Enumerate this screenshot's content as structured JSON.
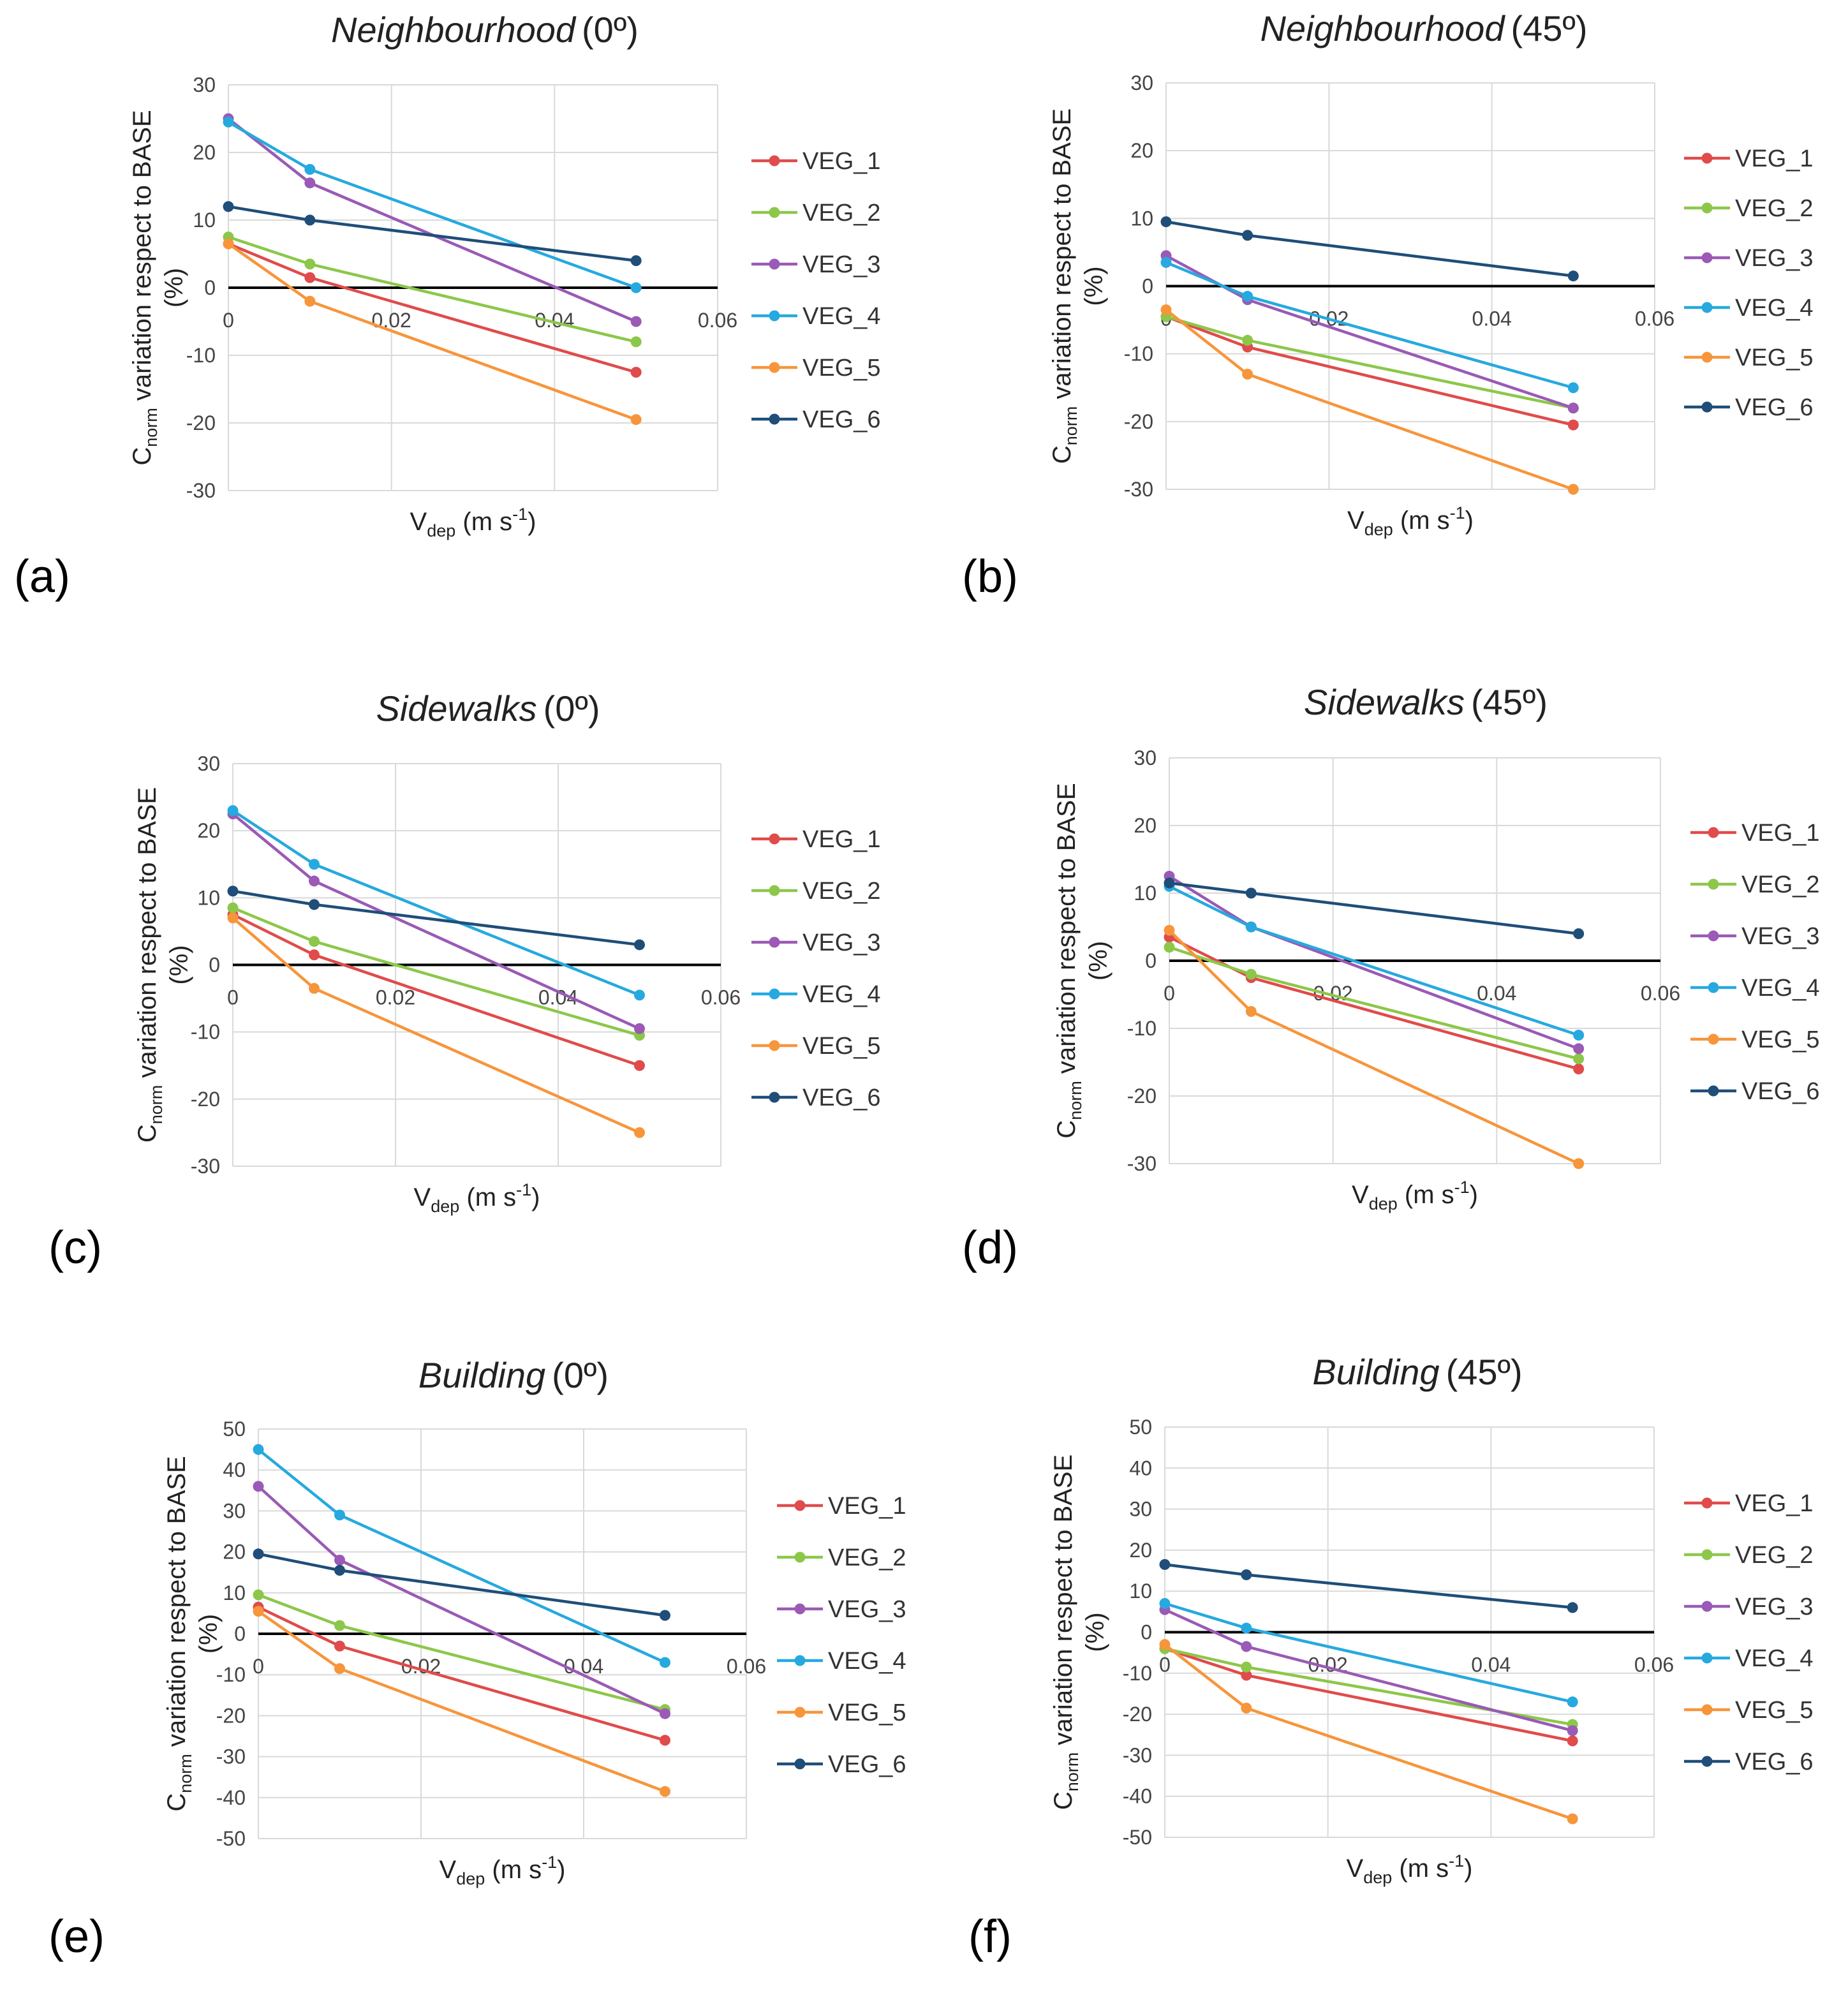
{
  "series_colors": {
    "VEG_1": "#e04b4b",
    "VEG_2": "#8cc74a",
    "VEG_3": "#9a5ab5",
    "VEG_4": "#26a9df",
    "VEG_5": "#f7953b",
    "VEG_6": "#1f4e79"
  },
  "chart_data": [
    {
      "panel_label": "(a)",
      "type": "line",
      "title_main": "Neighbourhood",
      "title_angle": "(0º)",
      "ylabel": {
        "c": "C",
        "sub": "norm",
        "rest": " variation respect to BASE",
        "line2": "(%)"
      },
      "xlabel": {
        "v": "V",
        "sub": "dep",
        "units": " (m s",
        "sup": "-1",
        "close": ")"
      },
      "ylim": [
        -30,
        30
      ],
      "yticks": [
        30,
        20,
        10,
        0,
        -10,
        -20,
        -30
      ],
      "xlim": [
        0,
        0.06
      ],
      "xticks": [
        "0",
        "0.02",
        "0.04",
        "0.06"
      ],
      "x": [
        0,
        0.01,
        0.05
      ],
      "series": [
        {
          "name": "VEG_1",
          "values": [
            6.5,
            1.5,
            -12.5
          ]
        },
        {
          "name": "VEG_2",
          "values": [
            7.5,
            3.5,
            -8
          ]
        },
        {
          "name": "VEG_3",
          "values": [
            25,
            15.5,
            -5
          ]
        },
        {
          "name": "VEG_4",
          "values": [
            24.5,
            17.5,
            0
          ]
        },
        {
          "name": "VEG_5",
          "values": [
            6.5,
            -2,
            -19.5
          ]
        },
        {
          "name": "VEG_6",
          "values": [
            12,
            10,
            4
          ]
        }
      ]
    },
    {
      "panel_label": "(b)",
      "type": "line",
      "title_main": "Neighbourhood",
      "title_angle": "(45º)",
      "ylabel": {
        "c": "C",
        "sub": "norm",
        "rest": " variation respect to BASE",
        "line2": "(%)"
      },
      "xlabel": {
        "v": "V",
        "sub": "dep",
        "units": " (m s",
        "sup": "-1",
        "close": ")"
      },
      "ylim": [
        -30,
        30
      ],
      "yticks": [
        30,
        20,
        10,
        0,
        -10,
        -20,
        -30
      ],
      "xlim": [
        0,
        0.06
      ],
      "xticks": [
        "0",
        "0.02",
        "0.04",
        "0.06"
      ],
      "x": [
        0,
        0.01,
        0.05
      ],
      "series": [
        {
          "name": "VEG_1",
          "values": [
            -4.5,
            -9,
            -20.5
          ]
        },
        {
          "name": "VEG_2",
          "values": [
            -4.5,
            -8,
            -18
          ]
        },
        {
          "name": "VEG_3",
          "values": [
            4.5,
            -2,
            -18
          ]
        },
        {
          "name": "VEG_4",
          "values": [
            3.5,
            -1.5,
            -15
          ]
        },
        {
          "name": "VEG_5",
          "values": [
            -3.5,
            -13,
            -30
          ]
        },
        {
          "name": "VEG_6",
          "values": [
            9.5,
            7.5,
            1.5
          ]
        }
      ]
    },
    {
      "panel_label": "(c)",
      "type": "line",
      "title_main": "Sidewalks",
      "title_angle": "(0º)",
      "ylabel": {
        "c": "C",
        "sub": "norm",
        "rest": " variation respect to BASE",
        "line2": "(%)"
      },
      "xlabel": {
        "v": "V",
        "sub": "dep",
        "units": " (m s",
        "sup": "-1",
        "close": ")"
      },
      "ylim": [
        -30,
        30
      ],
      "yticks": [
        30,
        20,
        10,
        0,
        -10,
        -20,
        -30
      ],
      "xlim": [
        0,
        0.06
      ],
      "xticks": [
        "0",
        "0.02",
        "0.04",
        "0.06"
      ],
      "x": [
        0,
        0.01,
        0.05
      ],
      "series": [
        {
          "name": "VEG_1",
          "values": [
            7.5,
            1.5,
            -15
          ]
        },
        {
          "name": "VEG_2",
          "values": [
            8.5,
            3.5,
            -10.5
          ]
        },
        {
          "name": "VEG_3",
          "values": [
            22.5,
            12.5,
            -9.5
          ]
        },
        {
          "name": "VEG_4",
          "values": [
            23,
            15,
            -4.5
          ]
        },
        {
          "name": "VEG_5",
          "values": [
            7,
            -3.5,
            -25
          ]
        },
        {
          "name": "VEG_6",
          "values": [
            11,
            9,
            3
          ]
        }
      ]
    },
    {
      "panel_label": "(d)",
      "type": "line",
      "title_main": "Sidewalks",
      "title_angle": "(45º)",
      "ylabel": {
        "c": "C",
        "sub": "norm",
        "rest": " variation respect to BASE",
        "line2": "(%)"
      },
      "xlabel": {
        "v": "V",
        "sub": "dep",
        "units": " (m s",
        "sup": "-1",
        "close": ")"
      },
      "ylim": [
        -30,
        30
      ],
      "yticks": [
        30,
        20,
        10,
        0,
        -10,
        -20,
        -30
      ],
      "xlim": [
        0,
        0.06
      ],
      "xticks": [
        "0",
        "0.02",
        "0.04",
        "0.06"
      ],
      "x": [
        0,
        0.01,
        0.05
      ],
      "series": [
        {
          "name": "VEG_1",
          "values": [
            3.5,
            -2.5,
            -16
          ]
        },
        {
          "name": "VEG_2",
          "values": [
            2,
            -2,
            -14.5
          ]
        },
        {
          "name": "VEG_3",
          "values": [
            12.5,
            5,
            -13
          ]
        },
        {
          "name": "VEG_4",
          "values": [
            11,
            5,
            -11
          ]
        },
        {
          "name": "VEG_5",
          "values": [
            4.5,
            -7.5,
            -30
          ]
        },
        {
          "name": "VEG_6",
          "values": [
            11.5,
            10,
            4
          ]
        }
      ]
    },
    {
      "panel_label": "(e)",
      "type": "line",
      "title_main": "Building",
      "title_angle": "(0º)",
      "ylabel": {
        "c": "C",
        "sub": "norm",
        "rest": " variation respect to BASE",
        "line2": "(%)"
      },
      "xlabel": {
        "v": "V",
        "sub": "dep",
        "units": " (m s",
        "sup": "-1",
        "close": ")"
      },
      "ylim": [
        -50,
        50
      ],
      "yticks": [
        50,
        40,
        30,
        20,
        10,
        0,
        -10,
        -20,
        -30,
        -40,
        -50
      ],
      "xlim": [
        0,
        0.06
      ],
      "xticks": [
        "0",
        "0.02",
        "0.04",
        "0.06"
      ],
      "x": [
        0,
        0.01,
        0.05
      ],
      "series": [
        {
          "name": "VEG_1",
          "values": [
            6.5,
            -3,
            -26
          ]
        },
        {
          "name": "VEG_2",
          "values": [
            9.5,
            2,
            -18.5
          ]
        },
        {
          "name": "VEG_3",
          "values": [
            36,
            18,
            -19.5
          ]
        },
        {
          "name": "VEG_4",
          "values": [
            45,
            29,
            -7
          ]
        },
        {
          "name": "VEG_5",
          "values": [
            5.5,
            -8.5,
            -38.5
          ]
        },
        {
          "name": "VEG_6",
          "values": [
            19.5,
            15.5,
            4.5
          ]
        }
      ]
    },
    {
      "panel_label": "(f)",
      "type": "line",
      "title_main": "Building",
      "title_angle": "(45º)",
      "ylabel": {
        "c": "C",
        "sub": "norm",
        "rest": " variation respect to BASE",
        "line2": "(%)"
      },
      "xlabel": {
        "v": "V",
        "sub": "dep",
        "units": " (m s",
        "sup": "-1",
        "close": ")"
      },
      "ylim": [
        -50,
        50
      ],
      "yticks": [
        50,
        40,
        30,
        20,
        10,
        0,
        -10,
        -20,
        -30,
        -40,
        -50
      ],
      "xlim": [
        0,
        0.06
      ],
      "xticks": [
        "0",
        "0.02",
        "0.04",
        "0.06"
      ],
      "x": [
        0,
        0.01,
        0.05
      ],
      "series": [
        {
          "name": "VEG_1",
          "values": [
            -4,
            -10.5,
            -26.5
          ]
        },
        {
          "name": "VEG_2",
          "values": [
            -4,
            -8.5,
            -22.5
          ]
        },
        {
          "name": "VEG_3",
          "values": [
            5.5,
            -3.5,
            -24
          ]
        },
        {
          "name": "VEG_4",
          "values": [
            7,
            1,
            -17
          ]
        },
        {
          "name": "VEG_5",
          "values": [
            -3,
            -18.5,
            -45.5
          ]
        },
        {
          "name": "VEG_6",
          "values": [
            16.5,
            14,
            6
          ]
        }
      ]
    }
  ]
}
